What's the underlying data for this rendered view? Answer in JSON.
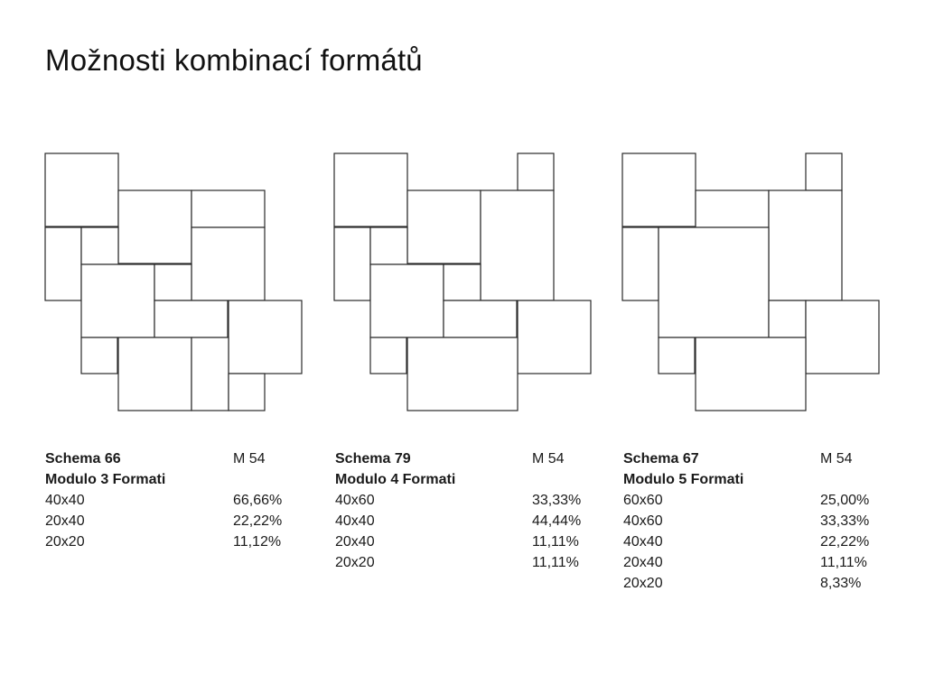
{
  "title": "Možnosti kombinací formátů",
  "schemas": [
    {
      "name": "Schema 66",
      "code": "M 54",
      "modulo": "Modulo 3 Formati",
      "formats": [
        {
          "size": "40x40",
          "percent": "66,66%"
        },
        {
          "size": "20x40",
          "percent": "22,22%"
        },
        {
          "size": "20x20",
          "percent": "11,12%"
        }
      ]
    },
    {
      "name": "Schema 79",
      "code": "M 54",
      "modulo": "Modulo 4 Formati",
      "formats": [
        {
          "size": "40x60",
          "percent": "33,33%"
        },
        {
          "size": "40x40",
          "percent": "44,44%"
        },
        {
          "size": "20x40",
          "percent": "11,11%"
        },
        {
          "size": "20x20",
          "percent": "11,11%"
        }
      ]
    },
    {
      "name": "Schema 67",
      "code": "M 54",
      "modulo": "Modulo 5 Formati",
      "formats": [
        {
          "size": "60x60",
          "percent": "25,00%"
        },
        {
          "size": "40x60",
          "percent": "33,33%"
        },
        {
          "size": "40x40",
          "percent": "22,22%"
        },
        {
          "size": "20x40",
          "percent": "11,11%"
        },
        {
          "size": "20x20",
          "percent": "8,33%"
        }
      ]
    }
  ]
}
